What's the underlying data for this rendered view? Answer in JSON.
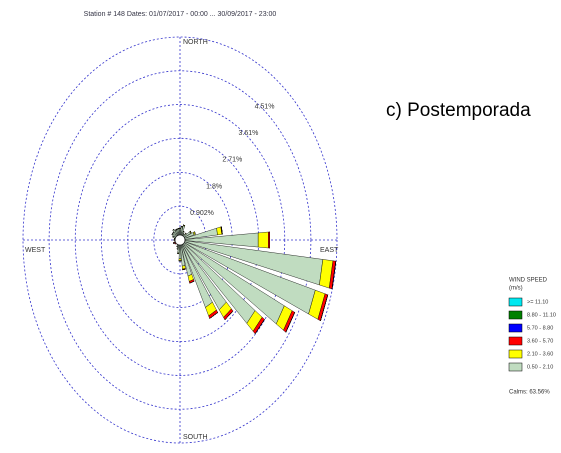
{
  "chart_data": {
    "type": "wind_rose",
    "title": "Station # 148  Dates: 01/07/2017 - 00:00 ... 30/09/2017 - 23:00",
    "annotation": "c) Postemporada",
    "compass_labels": {
      "north": "NORTH",
      "east": "EAST",
      "south": "SOUTH",
      "west": "WEST"
    },
    "legend_title": [
      "WIND SPEED",
      "(m/s)"
    ],
    "calms_label": "Calms: 63.56%",
    "rlim": [
      0,
      5.41
    ],
    "rticks": [
      {
        "value": 0.902,
        "label": "0.902%"
      },
      {
        "value": 1.8,
        "label": "1.8%"
      },
      {
        "value": 2.71,
        "label": "2.71%"
      },
      {
        "value": 3.61,
        "label": "3.61%"
      },
      {
        "value": 4.51,
        "label": "4.51%"
      },
      5.41
    ],
    "series": [
      {
        "name": ">= 11.10",
        "color": "#00e8f0",
        "values": [
          0,
          0,
          0,
          0,
          0,
          0,
          0,
          0,
          0,
          0,
          0,
          0,
          0,
          0,
          0,
          0,
          0,
          0,
          0,
          0,
          0,
          0,
          0,
          0,
          0,
          0,
          0,
          0,
          0,
          0,
          0,
          0,
          0,
          0,
          0,
          0
        ]
      },
      {
        "name": "8.80 - 11.10",
        "color": "#008000",
        "values": [
          0,
          0,
          0,
          0,
          0,
          0,
          0,
          0,
          0,
          0,
          0,
          0,
          0,
          0,
          0,
          0,
          0,
          0,
          0,
          0,
          0,
          0,
          0,
          0,
          0,
          0,
          0,
          0,
          0,
          0,
          0,
          0,
          0,
          0,
          0,
          0
        ]
      },
      {
        "name": "5.70 - 8.80",
        "color": "#0000ff",
        "values": [
          0,
          0,
          0,
          0,
          0,
          0,
          0,
          0,
          0,
          0,
          0,
          0,
          0,
          0,
          0,
          0,
          0,
          0,
          0,
          0,
          0,
          0,
          0,
          0,
          0,
          0,
          0,
          0,
          0,
          0,
          0,
          0,
          0,
          0,
          0,
          0
        ]
      },
      {
        "name": "3.60 - 5.70",
        "color": "#ff0000",
        "values": [
          0,
          0,
          0,
          0,
          0,
          0,
          0,
          0,
          0.02,
          0.05,
          0.1,
          0.1,
          0.1,
          0.1,
          0.08,
          0.08,
          0.05,
          0.02,
          0.01,
          0,
          0,
          0,
          0,
          0,
          0.05,
          0.04,
          0.03,
          0,
          0,
          0,
          0,
          0,
          0,
          0,
          0,
          0
        ]
      },
      {
        "name": "2.10 - 3.60",
        "color": "#ffff00",
        "values": [
          0.02,
          0.02,
          0.02,
          0.01,
          0.01,
          0.02,
          0.03,
          0.05,
          0.15,
          0.35,
          0.35,
          0.35,
          0.3,
          0.3,
          0.25,
          0.25,
          0.15,
          0.08,
          0.05,
          0.02,
          0.01,
          0.01,
          0,
          0,
          0,
          0,
          0,
          0.01,
          0,
          0.01,
          0.01,
          0.01,
          0.01,
          0.01,
          0.01,
          0.01
        ]
      },
      {
        "name": "0.50 - 2.10",
        "color": "#c0dcc0",
        "values": [
          0.3,
          0.35,
          0.4,
          0.25,
          0.2,
          0.25,
          0.4,
          0.5,
          1.3,
          2.7,
          4.95,
          4.85,
          4.0,
          3.2,
          2.3,
          2.0,
          1.0,
          0.7,
          0.5,
          0.35,
          0.25,
          0.2,
          0.15,
          0.15,
          0.15,
          0.2,
          0.15,
          0.2,
          0.2,
          0.25,
          0.3,
          0.3,
          0.35,
          0.3,
          0.3,
          0.3
        ]
      }
    ]
  }
}
